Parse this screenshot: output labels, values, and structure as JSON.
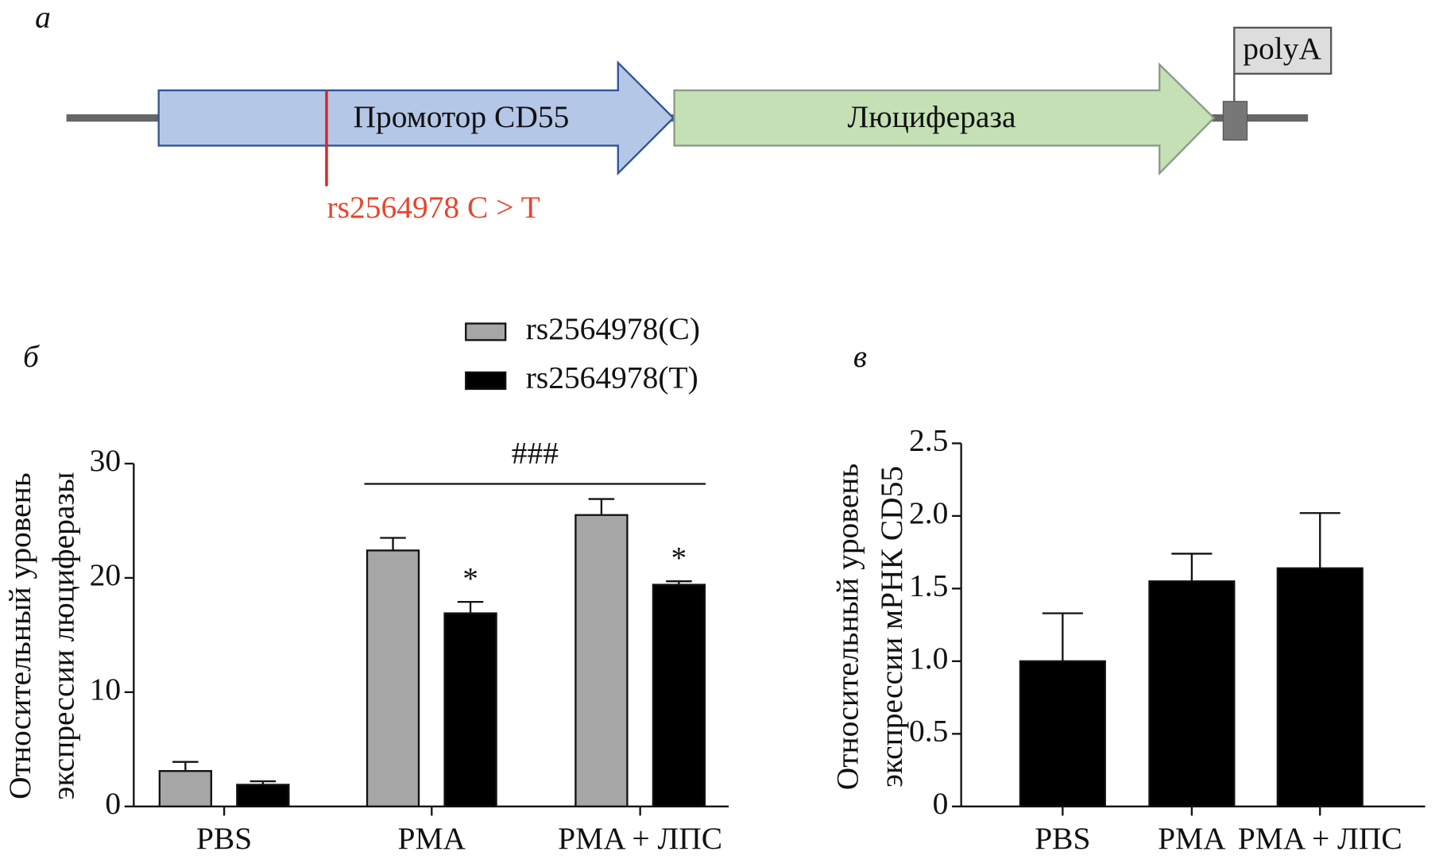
{
  "diagram": {
    "panel_label": "а",
    "promoter": "Промотор CD55",
    "reporter": "Люцифераза",
    "polya": "polyA",
    "snp": "rs2564978 C > T"
  },
  "chart_data": [
    {
      "type": "bar",
      "panel_label": "б",
      "ylabel": [
        "Относительный уровень",
        "экспрессии люциферазы"
      ],
      "categories": [
        "PBS",
        "PMA",
        "PMA + ЛПС"
      ],
      "series": [
        {
          "name": "rs2564978(C)",
          "color": "#a6a6a6",
          "values": [
            3.1,
            22.4,
            25.5
          ],
          "errors": [
            0.8,
            1.1,
            1.4
          ],
          "markers": [
            null,
            null,
            null
          ]
        },
        {
          "name": "rs2564978(T)",
          "color": "#000000",
          "values": [
            1.9,
            16.9,
            19.4
          ],
          "errors": [
            0.3,
            1.0,
            0.3
          ],
          "markers": [
            null,
            "*",
            "*"
          ]
        }
      ],
      "bracket_label": "###",
      "ylim": [
        0,
        30
      ],
      "yticks": [
        0,
        10,
        20,
        30
      ]
    },
    {
      "type": "bar",
      "panel_label": "в",
      "ylabel": [
        "Относительный уровень",
        "экспрессии мРНК CD55"
      ],
      "categories": [
        "PBS",
        "PMA",
        "PMA + ЛПС"
      ],
      "values": [
        1.0,
        1.55,
        1.64
      ],
      "errors": [
        0.33,
        0.19,
        0.38
      ],
      "color": "#000000",
      "ylim": [
        0,
        2.5
      ],
      "yticks": [
        0,
        {
          "value": 0.5,
          "label": "0.5"
        },
        {
          "value": 1,
          "label": "1.0"
        },
        1.5,
        {
          "value": 2,
          "label": "2.0"
        },
        2.5
      ]
    }
  ]
}
